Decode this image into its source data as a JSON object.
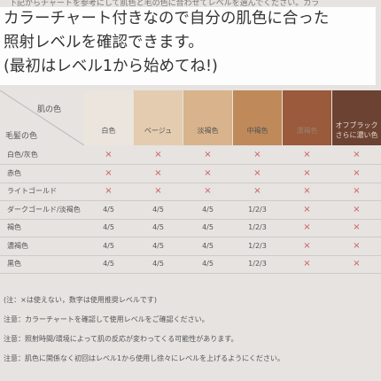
{
  "top_text": "下記からチャートを参考にして肌色と毛の色に合わせてレベルを選んでください。カラ",
  "caption": [
    "カラーチャート付きなので自分の肌色に合った",
    "照射レベルを確認できます。",
    "(最初はレベル1から始めてね!)"
  ],
  "table": {
    "corner": {
      "skin": "肌の色",
      "hair": "毛髪の色"
    },
    "columns": [
      [
        "白色"
      ],
      [
        "ベージュ"
      ],
      [
        "淡褐色"
      ],
      [
        "中褐色"
      ],
      [
        "濃褐色"
      ],
      [
        "オフブラック",
        "さらに濃い色"
      ]
    ],
    "rows": [
      {
        "label": "白色/灰色",
        "cells": [
          "×",
          "×",
          "×",
          "×",
          "×",
          "×"
        ]
      },
      {
        "label": "赤色",
        "cells": [
          "×",
          "×",
          "×",
          "×",
          "×",
          "×"
        ]
      },
      {
        "label": "ライトゴールド",
        "cells": [
          "×",
          "×",
          "×",
          "×",
          "×",
          "×"
        ]
      },
      {
        "label": "ダークゴールド/淡褐色",
        "cells": [
          "4/5",
          "4/5",
          "4/5",
          "1/2/3",
          "×",
          "×"
        ]
      },
      {
        "label": "褐色",
        "cells": [
          "4/5",
          "4/5",
          "4/5",
          "1/2/3",
          "×",
          "×"
        ]
      },
      {
        "label": "濃褐色",
        "cells": [
          "4/5",
          "4/5",
          "4/5",
          "1/2/3",
          "×",
          "×"
        ]
      },
      {
        "label": "黒色",
        "cells": [
          "4/5",
          "4/5",
          "4/5",
          "1/2/3",
          "×",
          "×"
        ]
      }
    ]
  },
  "notes": [
    "(注：×は使えない，数字は使用推奨レベルです)",
    "注意：カラーチャートを確認して使用レベルをご確認ください。",
    "注意：照射時間/環境によって肌の反応が変わってくる可能性があります。",
    "注意：肌色に関係なく初回はレベル1から使用し徐々にレベルを上げるようにください。"
  ]
}
